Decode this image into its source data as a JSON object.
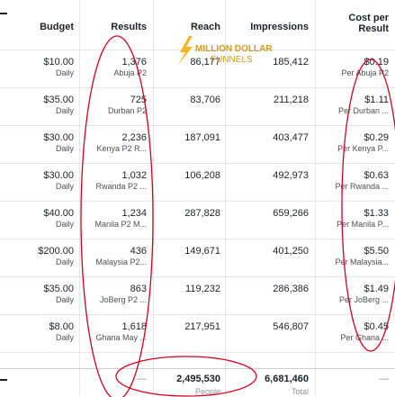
{
  "header": {
    "columns": [
      "Budget",
      "Results",
      "Reach",
      "Impressions",
      "Cost per Result"
    ]
  },
  "watermark": {
    "line1": "MILLION DOLLAR",
    "line2": "FUNNELS"
  },
  "table": {
    "rows": [
      [
        "$10.00",
        "Daily",
        "1,376",
        "Abuja P2",
        "86,177",
        "185,412",
        "$0.19",
        "Per Abuja P2"
      ],
      [
        "$35.00",
        "Daily",
        "725",
        "Durban P2",
        "83,706",
        "211,218",
        "$1.11",
        "Per Durban ..."
      ],
      [
        "$30.00",
        "Daily",
        "2,236",
        "Kenya P2 R...",
        "187,091",
        "403,477",
        "$0.29",
        "Per Kenya P..."
      ],
      [
        "$30.00",
        "Daily",
        "1,032",
        "Rwanda P2 ...",
        "106,208",
        "492,973",
        "$0.63",
        "Per Rwanda ..."
      ],
      [
        "$40.00",
        "Daily",
        "1,234",
        "Manila P2 M...",
        "287,828",
        "659,266",
        "$1.33",
        "Per Manila P..."
      ],
      [
        "$200.00",
        "Daily",
        "436",
        "Malaysia P2...",
        "149,671",
        "401,250",
        "$5.50",
        "Per Malaysia..."
      ],
      [
        "$35.00",
        "Daily",
        "863",
        "JoBerg P2 ...",
        "119,232",
        "286,386",
        "$1.49",
        "Per JoBerg ..."
      ],
      [
        "$8.00",
        "Daily",
        "1,618",
        "Ghana May ...",
        "217,951",
        "546,807",
        "$0.45",
        "Per Ghana ..."
      ]
    ]
  },
  "totals": {
    "results": "—",
    "reach": "2,495,530",
    "reach_sub": "People",
    "impressions": "6,681,460",
    "impressions_sub": "Total",
    "cost": "—"
  }
}
